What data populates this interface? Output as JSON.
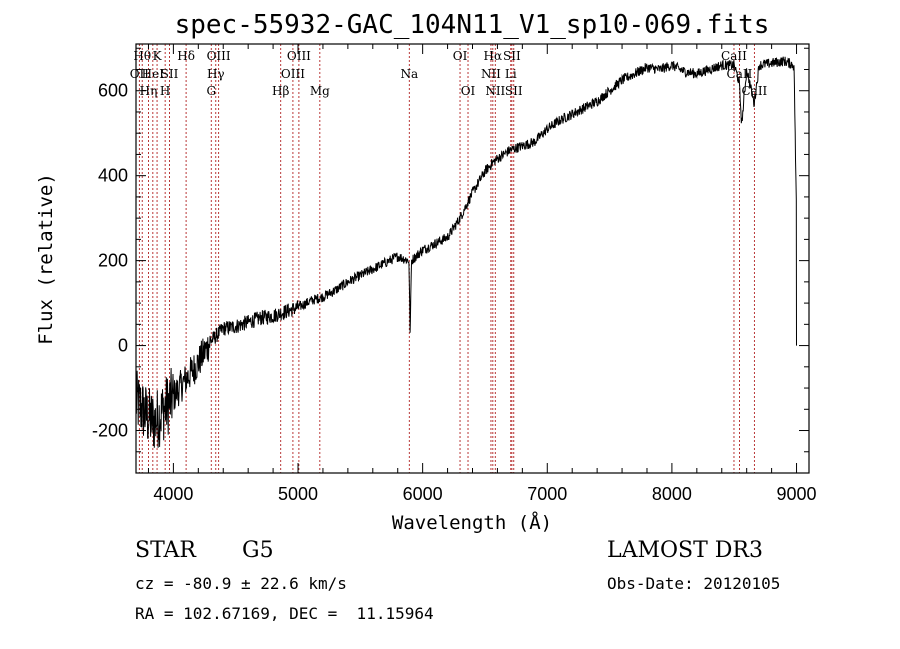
{
  "chart_data": {
    "type": "line",
    "title": "spec-55932-GAC_104N11_V1_sp10-069.fits",
    "xlabel": "Wavelength (Å)",
    "ylabel": "Flux (relative)",
    "xlim": [
      3700,
      9100
    ],
    "ylim": [
      -300,
      710
    ],
    "x_ticks": [
      4000,
      5000,
      6000,
      7000,
      8000,
      9000
    ],
    "y_ticks": [
      -200,
      0,
      200,
      400,
      600
    ],
    "series": [
      {
        "name": "spectrum",
        "x": [
          3700,
          3750,
          3800,
          3850,
          3900,
          3950,
          4000,
          4100,
          4200,
          4300,
          4400,
          4500,
          4600,
          4700,
          4800,
          4900,
          5000,
          5100,
          5200,
          5300,
          5400,
          5500,
          5600,
          5700,
          5800,
          5890,
          5900,
          5910,
          6000,
          6100,
          6200,
          6300,
          6400,
          6500,
          6560,
          6600,
          6700,
          6800,
          6900,
          7000,
          7100,
          7200,
          7300,
          7400,
          7500,
          7600,
          7700,
          7800,
          7900,
          8000,
          8100,
          8200,
          8300,
          8400,
          8500,
          8540,
          8560,
          8600,
          8660,
          8700,
          8800,
          8900,
          8980,
          9000
        ],
        "y": [
          -130,
          -150,
          -170,
          -180,
          -160,
          -140,
          -120,
          -80,
          -40,
          10,
          40,
          45,
          55,
          65,
          70,
          80,
          90,
          105,
          115,
          130,
          150,
          165,
          180,
          195,
          210,
          200,
          20,
          200,
          225,
          240,
          255,
          300,
          360,
          410,
          430,
          440,
          460,
          470,
          480,
          510,
          530,
          545,
          560,
          575,
          600,
          625,
          640,
          655,
          650,
          660,
          645,
          640,
          650,
          660,
          660,
          620,
          520,
          650,
          570,
          660,
          665,
          670,
          660,
          300
        ]
      }
    ],
    "line_markers": [
      {
        "wl": 3727,
        "label": "OII",
        "row": 2
      },
      {
        "wl": 3750,
        "label": "Hθ",
        "row": 1
      },
      {
        "wl": 3800,
        "label": "Hη",
        "row": 3
      },
      {
        "wl": 3835,
        "label": "HeI",
        "row": 2
      },
      {
        "wl": 3869,
        "label": "K",
        "row": 1
      },
      {
        "wl": 3934,
        "label": "H",
        "row": 3
      },
      {
        "wl": 3969,
        "label": "SII",
        "row": 2
      },
      {
        "wl": 4102,
        "label": "Hδ",
        "row": 1
      },
      {
        "wl": 4304,
        "label": "G",
        "row": 3
      },
      {
        "wl": 4340,
        "label": "Hγ",
        "row": 2
      },
      {
        "wl": 4363,
        "label": "OIII",
        "row": 1
      },
      {
        "wl": 4861,
        "label": "Hβ",
        "row": 3
      },
      {
        "wl": 4959,
        "label": "OIII",
        "row": 2
      },
      {
        "wl": 5007,
        "label": "OIII",
        "row": 1
      },
      {
        "wl": 5175,
        "label": "Mg",
        "row": 3
      },
      {
        "wl": 5893,
        "label": "Na",
        "row": 2
      },
      {
        "wl": 6300,
        "label": "OI",
        "row": 1
      },
      {
        "wl": 6364,
        "label": "OI",
        "row": 3
      },
      {
        "wl": 6548,
        "label": "NII",
        "row": 2
      },
      {
        "wl": 6563,
        "label": "Hα",
        "row": 1
      },
      {
        "wl": 6583,
        "label": "NII",
        "row": 3
      },
      {
        "wl": 6707,
        "label": "Li",
        "row": 2
      },
      {
        "wl": 6716,
        "label": "SII",
        "row": 1
      },
      {
        "wl": 6731,
        "label": "SII",
        "row": 3
      },
      {
        "wl": 8498,
        "label": "CaII",
        "row": 1
      },
      {
        "wl": 8542,
        "label": "CaII",
        "row": 2
      },
      {
        "wl": 8662,
        "label": "CaII",
        "row": 3
      }
    ]
  },
  "info": {
    "class": "STAR",
    "subclass": "G5",
    "survey": "LAMOST DR3",
    "cz": "cz = -80.9 ± 22.6 km/s",
    "obs_date": "Obs-Date: 20120105",
    "coords": "RA = 102.67169, DEC =  11.15964"
  },
  "colors": {
    "spectrum": "#000000",
    "line_marker": "#b22222",
    "axes": "#000000",
    "background": "#ffffff"
  }
}
